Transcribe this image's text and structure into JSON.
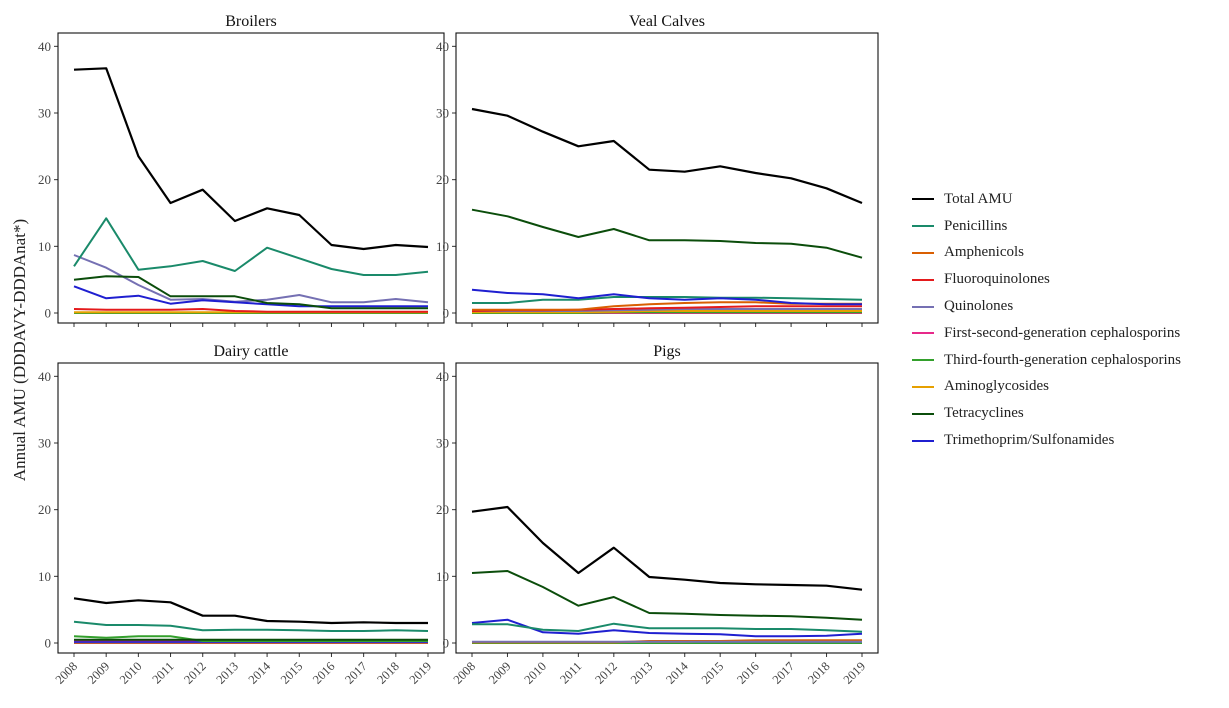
{
  "y_axis_label": "Annual AMU (DDDAVY-DDDAnat*)",
  "x_categories": [
    "2008",
    "2009",
    "2010",
    "2011",
    "2012",
    "2013",
    "2014",
    "2015",
    "2016",
    "2017",
    "2018",
    "2019"
  ],
  "y_ticks": [
    0,
    10,
    20,
    30,
    40
  ],
  "legend": [
    {
      "name": "Total AMU",
      "color": "#000000"
    },
    {
      "name": "Penicillins",
      "color": "#1a8a6a"
    },
    {
      "name": "Amphenicols",
      "color": "#d95f02"
    },
    {
      "name": "Fluoroquinolones",
      "color": "#e41a1c"
    },
    {
      "name": "Quinolones",
      "color": "#7570b3"
    },
    {
      "name": "First-second-generation cephalosporins",
      "color": "#e7298a"
    },
    {
      "name": "Third-fourth-generation cephalosporins",
      "color": "#33a02c"
    },
    {
      "name": "Aminoglycosides",
      "color": "#e6a000"
    },
    {
      "name": "Tetracyclines",
      "color": "#0b4d0b"
    },
    {
      "name": "Trimethoprim/Sulfonamides",
      "color": "#1f1fd0"
    }
  ],
  "chart_data": [
    {
      "type": "line",
      "title": "Broilers",
      "ylim": [
        -1.5,
        42
      ],
      "x": [
        "2008",
        "2009",
        "2010",
        "2011",
        "2012",
        "2013",
        "2014",
        "2015",
        "2016",
        "2017",
        "2018",
        "2019"
      ],
      "series": [
        {
          "name": "Amphenicols",
          "values": [
            0,
            0,
            0,
            0,
            0,
            0,
            0,
            0,
            0,
            0,
            0,
            0
          ]
        },
        {
          "name": "First-second-generation cephalosporins",
          "values": [
            0,
            0,
            0,
            0,
            0,
            0,
            0,
            0,
            0,
            0,
            0,
            0
          ]
        },
        {
          "name": "Third-fourth-generation cephalosporins",
          "values": [
            0,
            0,
            0,
            0,
            0,
            0,
            0,
            0,
            0,
            0,
            0,
            0
          ]
        },
        {
          "name": "Aminoglycosides",
          "values": [
            0.1,
            0.1,
            0.1,
            0.1,
            0.1,
            0.1,
            0.1,
            0.1,
            0.1,
            0.1,
            0.1,
            0.1
          ]
        },
        {
          "name": "Fluoroquinolones",
          "values": [
            0.6,
            0.5,
            0.5,
            0.5,
            0.6,
            0.3,
            0.2,
            0.2,
            0.2,
            0.2,
            0.2,
            0.2
          ]
        },
        {
          "name": "Quinolones",
          "values": [
            8.7,
            6.8,
            4.2,
            2.0,
            2.1,
            1.7,
            2.0,
            2.7,
            1.6,
            1.6,
            2.1,
            1.6
          ]
        },
        {
          "name": "Trimethoprim/Sulfonamides",
          "values": [
            4.0,
            2.2,
            2.6,
            1.4,
            1.9,
            1.6,
            1.3,
            1.0,
            1.0,
            1.0,
            1.0,
            1.0
          ]
        },
        {
          "name": "Tetracyclines",
          "values": [
            5.0,
            5.5,
            5.4,
            2.5,
            2.5,
            2.5,
            1.5,
            1.3,
            0.7,
            0.7,
            0.7,
            0.7
          ]
        },
        {
          "name": "Penicillins",
          "values": [
            7.0,
            14.2,
            6.5,
            7.0,
            7.8,
            6.3,
            9.8,
            8.2,
            6.6,
            5.7,
            5.7,
            6.2
          ]
        },
        {
          "name": "Total AMU",
          "values": [
            36.5,
            36.7,
            23.5,
            16.5,
            18.5,
            13.8,
            15.7,
            14.7,
            10.2,
            9.6,
            10.2,
            9.9
          ]
        }
      ]
    },
    {
      "type": "line",
      "title": "Veal Calves",
      "ylim": [
        -1.5,
        42
      ],
      "x": [
        "2008",
        "2009",
        "2010",
        "2011",
        "2012",
        "2013",
        "2014",
        "2015",
        "2016",
        "2017",
        "2018",
        "2019"
      ],
      "series": [
        {
          "name": "First-second-generation cephalosporins",
          "values": [
            0,
            0,
            0,
            0,
            0,
            0,
            0,
            0,
            0,
            0,
            0,
            0
          ]
        },
        {
          "name": "Third-fourth-generation cephalosporins",
          "values": [
            0,
            0,
            0,
            0,
            0.1,
            0.1,
            0.1,
            0.1,
            0.1,
            0.1,
            0.1,
            0.1
          ]
        },
        {
          "name": "Aminoglycosides",
          "values": [
            0.1,
            0.1,
            0.1,
            0.1,
            0.2,
            0.3,
            0.3,
            0.3,
            0.3,
            0.3,
            0.3,
            0.3
          ]
        },
        {
          "name": "Quinolones",
          "values": [
            0.3,
            0.3,
            0.3,
            0.3,
            0.4,
            0.5,
            0.6,
            0.6,
            0.6,
            0.6,
            0.6,
            0.6
          ]
        },
        {
          "name": "Fluoroquinolones",
          "values": [
            0.3,
            0.4,
            0.4,
            0.5,
            0.6,
            0.7,
            0.8,
            0.9,
            1.0,
            1.0,
            1.0,
            1.0
          ]
        },
        {
          "name": "Amphenicols",
          "values": [
            0.5,
            0.5,
            0.5,
            0.5,
            1.0,
            1.3,
            1.5,
            1.6,
            1.6,
            1.4,
            1.4,
            1.4
          ]
        },
        {
          "name": "Penicillins",
          "values": [
            1.5,
            1.5,
            2.0,
            2.0,
            2.4,
            2.4,
            2.4,
            2.3,
            2.3,
            2.2,
            2.1,
            2.0
          ]
        },
        {
          "name": "Trimethoprim/Sulfonamides",
          "values": [
            3.5,
            3.0,
            2.8,
            2.2,
            2.8,
            2.2,
            2.0,
            2.2,
            2.0,
            1.5,
            1.3,
            1.3
          ]
        },
        {
          "name": "Tetracyclines",
          "values": [
            15.5,
            14.5,
            12.9,
            11.4,
            12.6,
            10.9,
            10.9,
            10.8,
            10.5,
            10.4,
            9.8,
            8.3
          ]
        },
        {
          "name": "Total AMU",
          "values": [
            30.6,
            29.6,
            27.2,
            25.0,
            25.8,
            21.5,
            21.2,
            22.0,
            21.0,
            20.2,
            18.7,
            16.5
          ]
        }
      ]
    },
    {
      "type": "line",
      "title": "Dairy cattle",
      "ylim": [
        -1.5,
        42
      ],
      "x": [
        "2008",
        "2009",
        "2010",
        "2011",
        "2012",
        "2013",
        "2014",
        "2015",
        "2016",
        "2017",
        "2018",
        "2019"
      ],
      "series": [
        {
          "name": "Amphenicols",
          "values": [
            0,
            0,
            0,
            0,
            0,
            0,
            0,
            0,
            0,
            0,
            0,
            0
          ]
        },
        {
          "name": "Fluoroquinolones",
          "values": [
            0.1,
            0.1,
            0.1,
            0.1,
            0.1,
            0.1,
            0.1,
            0.1,
            0.1,
            0.1,
            0.1,
            0.1
          ]
        },
        {
          "name": "Quinolones",
          "values": [
            0.1,
            0.1,
            0.1,
            0.1,
            0.1,
            0.1,
            0.1,
            0.1,
            0.1,
            0.1,
            0.1,
            0.1
          ]
        },
        {
          "name": "Aminoglycosides",
          "values": [
            0.3,
            0.3,
            0.3,
            0.3,
            0.3,
            0.3,
            0.3,
            0.3,
            0.3,
            0.3,
            0.3,
            0.3
          ]
        },
        {
          "name": "Trimethoprim/Sulfonamides",
          "values": [
            0.2,
            0.2,
            0.2,
            0.2,
            0.2,
            0.2,
            0.2,
            0.2,
            0.2,
            0.2,
            0.2,
            0.2
          ]
        },
        {
          "name": "First-second-generation cephalosporins",
          "values": [
            0.4,
            0.4,
            0.4,
            0.4,
            0.4,
            0.4,
            0.4,
            0.4,
            0.4,
            0.4,
            0.4,
            0.4
          ]
        },
        {
          "name": "Third-fourth-generation cephalosporins",
          "values": [
            1.0,
            0.8,
            1.0,
            1.0,
            0.3,
            0.3,
            0.3,
            0.3,
            0.3,
            0.3,
            0.3,
            0.3
          ]
        },
        {
          "name": "Tetracyclines",
          "values": [
            0.5,
            0.5,
            0.5,
            0.5,
            0.5,
            0.5,
            0.5,
            0.5,
            0.5,
            0.5,
            0.5,
            0.5
          ]
        },
        {
          "name": "Penicillins",
          "values": [
            3.2,
            2.7,
            2.7,
            2.6,
            1.9,
            2.0,
            2.0,
            1.9,
            1.8,
            1.8,
            1.9,
            1.8
          ]
        },
        {
          "name": "Total AMU",
          "values": [
            6.7,
            6.0,
            6.4,
            6.1,
            4.1,
            4.1,
            3.3,
            3.2,
            3.0,
            3.1,
            3.0,
            3.0
          ]
        }
      ]
    },
    {
      "type": "line",
      "title": "Pigs",
      "ylim": [
        -1.5,
        42
      ],
      "x": [
        "2008",
        "2009",
        "2010",
        "2011",
        "2012",
        "2013",
        "2014",
        "2015",
        "2016",
        "2017",
        "2018",
        "2019"
      ],
      "series": [
        {
          "name": "Fluoroquinolones",
          "values": [
            0,
            0,
            0,
            0,
            0,
            0,
            0,
            0,
            0,
            0,
            0,
            0
          ]
        },
        {
          "name": "First-second-generation cephalosporins",
          "values": [
            0,
            0,
            0,
            0,
            0,
            0,
            0,
            0,
            0,
            0,
            0,
            0
          ]
        },
        {
          "name": "Third-fourth-generation cephalosporins",
          "values": [
            0,
            0,
            0,
            0,
            0,
            0,
            0,
            0,
            0,
            0,
            0,
            0
          ]
        },
        {
          "name": "Aminoglycosides",
          "values": [
            0.1,
            0.1,
            0.1,
            0.1,
            0.1,
            0.2,
            0.2,
            0.3,
            0.3,
            0.3,
            0.3,
            0.3
          ]
        },
        {
          "name": "Amphenicols",
          "values": [
            0.1,
            0.1,
            0.1,
            0.1,
            0.1,
            0.3,
            0.3,
            0.3,
            0.4,
            0.4,
            0.4,
            0.4
          ]
        },
        {
          "name": "Quinolones",
          "values": [
            0.2,
            0.2,
            0.2,
            0.2,
            0.2,
            0.2,
            0.2,
            0.2,
            0.2,
            0.2,
            0.2,
            0.2
          ]
        },
        {
          "name": "Trimethoprim/Sulfonamides",
          "values": [
            3.0,
            3.5,
            1.6,
            1.4,
            1.9,
            1.5,
            1.4,
            1.3,
            1.0,
            1.0,
            1.1,
            1.4
          ]
        },
        {
          "name": "Penicillins",
          "values": [
            2.8,
            2.8,
            2.0,
            1.8,
            2.9,
            2.2,
            2.2,
            2.2,
            2.1,
            2.1,
            1.9,
            1.7
          ]
        },
        {
          "name": "Tetracyclines",
          "values": [
            10.5,
            10.8,
            8.4,
            5.6,
            6.9,
            4.5,
            4.4,
            4.2,
            4.1,
            4.0,
            3.8,
            3.5
          ]
        },
        {
          "name": "Total AMU",
          "values": [
            19.7,
            20.4,
            15.0,
            10.5,
            14.3,
            9.9,
            9.5,
            9.0,
            8.8,
            8.7,
            8.6,
            8.0
          ]
        }
      ]
    }
  ]
}
